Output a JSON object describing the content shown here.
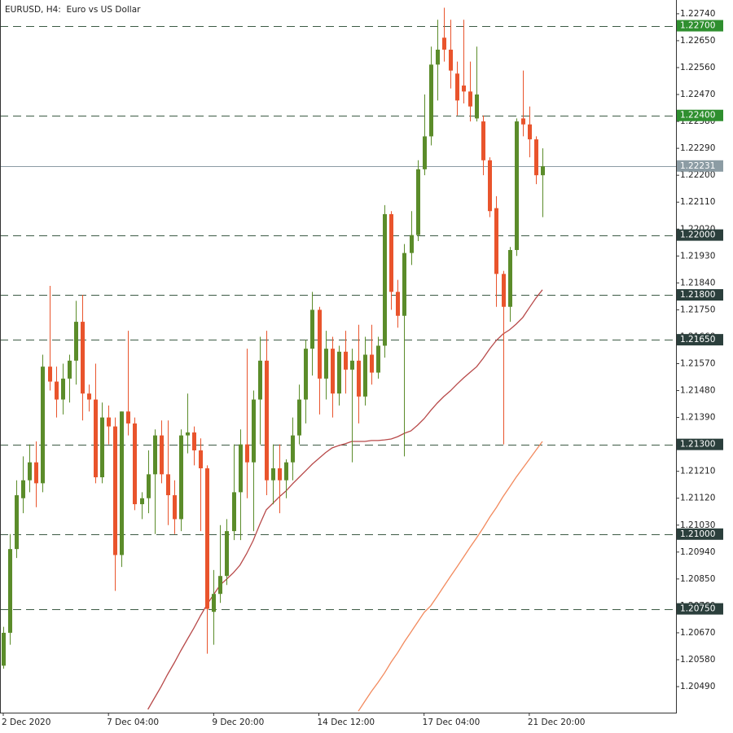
{
  "chart_data": {
    "type": "candlestick",
    "title": "EURUSD, H4:  Euro vs US Dollar",
    "categories": [
      "2 Dec 2020",
      null,
      null,
      null,
      null,
      null,
      null,
      null,
      null,
      null,
      null,
      null,
      null,
      null,
      null,
      null,
      "7 Dec 04:00",
      null,
      null,
      null,
      null,
      null,
      null,
      null,
      null,
      null,
      null,
      null,
      null,
      null,
      null,
      null,
      "9 Dec 20:00",
      null,
      null,
      null,
      null,
      null,
      null,
      null,
      null,
      null,
      null,
      null,
      null,
      null,
      null,
      null,
      "14 Dec 12:00",
      null,
      null,
      null,
      null,
      null,
      null,
      null,
      null,
      null,
      null,
      null,
      null,
      null,
      null,
      null,
      "17 Dec 04:00",
      null,
      null,
      null,
      null,
      null,
      null,
      null,
      null,
      null,
      null,
      null,
      null,
      null,
      null,
      null,
      "21 Dec 20:00",
      null,
      null
    ],
    "open": [
      1.2056,
      1.2067,
      1.2095,
      1.2112,
      1.2118,
      1.2124,
      1.2117,
      1.2156,
      1.2151,
      1.2145,
      1.2152,
      1.2158,
      1.2171,
      1.2147,
      1.2145,
      1.2119,
      1.2139,
      1.2136,
      1.2093,
      1.2141,
      1.2137,
      1.211,
      1.2112,
      1.212,
      1.2133,
      1.212,
      1.2113,
      1.2105,
      1.2133,
      1.2134,
      1.2128,
      1.2122,
      1.2074,
      1.208,
      1.2086,
      1.2101,
      1.2114,
      1.213,
      1.2124,
      1.2145,
      1.2158,
      1.2118,
      1.2122,
      1.2118,
      1.2124,
      1.2133,
      1.2145,
      1.2162,
      1.2175,
      1.2152,
      1.2162,
      1.2147,
      1.2161,
      1.2155,
      1.2158,
      1.2146,
      1.216,
      1.2154,
      1.2163,
      1.2207,
      1.2181,
      1.2173,
      1.2194,
      1.22,
      1.2222,
      1.2233,
      1.2257,
      1.2266,
      1.2262,
      1.2254,
      1.225,
      1.2248,
      1.2239,
      1.2238,
      1.2225,
      1.2209,
      1.2187,
      1.2176,
      1.2195,
      1.2239,
      1.2237,
      1.2232,
      1.222
    ],
    "high": [
      1.2069,
      1.21,
      1.2118,
      1.2126,
      1.213,
      1.2131,
      1.216,
      1.2183,
      1.2156,
      1.2157,
      1.216,
      1.2178,
      1.218,
      1.215,
      1.2157,
      1.2144,
      1.2143,
      1.2139,
      1.2141,
      1.2168,
      1.2139,
      1.2114,
      1.2128,
      1.2135,
      1.2138,
      1.2138,
      1.2118,
      1.2135,
      1.2147,
      1.2136,
      1.2132,
      1.2123,
      1.2088,
      1.2103,
      1.2105,
      1.213,
      1.2135,
      1.2162,
      1.2148,
      1.2166,
      1.2168,
      1.213,
      1.213,
      1.2125,
      1.2139,
      1.215,
      1.2165,
      1.2181,
      1.2176,
      1.2168,
      1.2166,
      1.2163,
      1.2168,
      1.2162,
      1.217,
      1.2166,
      1.217,
      1.2166,
      1.221,
      1.2208,
      1.2185,
      1.2197,
      1.2208,
      1.2225,
      1.2247,
      1.2263,
      1.2272,
      1.2276,
      1.2272,
      1.2258,
      1.2272,
      1.2258,
      1.2263,
      1.224,
      1.2226,
      1.2213,
      1.2188,
      1.2196,
      1.2239,
      1.2255,
      1.2243,
      1.2233,
      1.2229
    ],
    "low": [
      1.2055,
      1.2063,
      1.2092,
      1.2107,
      1.2114,
      1.2109,
      1.2114,
      1.2148,
      1.2139,
      1.214,
      1.2144,
      1.215,
      1.2138,
      1.2141,
      1.2117,
      1.2117,
      1.213,
      1.2081,
      1.2089,
      1.2133,
      1.2108,
      1.2105,
      1.2107,
      1.21,
      1.2117,
      1.2103,
      1.21,
      1.2101,
      1.2127,
      1.2123,
      1.2101,
      1.206,
      1.2063,
      1.2077,
      1.2083,
      1.2098,
      1.2098,
      1.2112,
      1.2101,
      1.213,
      1.2113,
      1.211,
      1.2107,
      1.2112,
      1.2118,
      1.213,
      1.2137,
      1.2153,
      1.214,
      1.2145,
      1.2139,
      1.2143,
      1.2147,
      1.2124,
      1.2137,
      1.2143,
      1.215,
      1.2152,
      1.2159,
      1.2175,
      1.2169,
      1.2126,
      1.219,
      1.2198,
      1.222,
      1.223,
      1.2245,
      1.2258,
      1.2249,
      1.224,
      1.2244,
      1.2238,
      1.2238,
      1.222,
      1.2206,
      1.2176,
      1.213,
      1.2171,
      1.2193,
      1.2233,
      1.2226,
      1.2217,
      1.2206
    ],
    "close": [
      1.2067,
      1.2095,
      1.2113,
      1.2118,
      1.2124,
      1.2117,
      1.2156,
      1.2151,
      1.2145,
      1.2152,
      1.2158,
      1.2171,
      1.2147,
      1.2145,
      1.2119,
      1.2139,
      1.2136,
      1.2093,
      1.2141,
      1.2137,
      1.211,
      1.2112,
      1.212,
      1.2133,
      1.212,
      1.2113,
      1.2105,
      1.2133,
      1.2134,
      1.2128,
      1.2122,
      1.2075,
      1.208,
      1.2086,
      1.2101,
      1.2114,
      1.213,
      1.2124,
      1.2145,
      1.2158,
      1.2118,
      1.2122,
      1.2118,
      1.2124,
      1.2133,
      1.2145,
      1.2162,
      1.2175,
      1.2152,
      1.2162,
      1.2147,
      1.2161,
      1.2155,
      1.2158,
      1.2146,
      1.216,
      1.2154,
      1.2163,
      1.2207,
      1.2181,
      1.2173,
      1.2194,
      1.22,
      1.2222,
      1.2233,
      1.2257,
      1.2262,
      1.2262,
      1.2255,
      1.2245,
      1.2248,
      1.2243,
      1.2247,
      1.2225,
      1.2208,
      1.2187,
      1.2176,
      1.2195,
      1.2238,
      1.2237,
      1.2232,
      1.222,
      1.2223
    ],
    "up_color": "#5b8c2a",
    "down_color": "#e9542c",
    "overlays": [
      {
        "color": "#b84a4a",
        "values": [
          null,
          null,
          null,
          null,
          null,
          null,
          null,
          null,
          null,
          null,
          null,
          null,
          null,
          null,
          null,
          null,
          null,
          null,
          null,
          null,
          null,
          null,
          1.20414,
          1.20452,
          1.2049,
          1.20531,
          1.20569,
          1.2061,
          1.20648,
          1.20686,
          1.20727,
          1.20765,
          1.20798,
          1.2083,
          1.2085,
          1.20871,
          1.20896,
          1.20934,
          1.20978,
          1.21032,
          1.21081,
          1.21103,
          1.21125,
          1.21144,
          1.21168,
          1.2119,
          1.21212,
          1.21234,
          1.21253,
          1.21272,
          1.21288,
          1.21296,
          1.21302,
          1.2131,
          1.2131,
          1.2131,
          1.21313,
          1.21313,
          1.21315,
          1.21318,
          1.21326,
          1.21337,
          1.21345,
          1.21364,
          1.21386,
          1.21413,
          1.21438,
          1.2146,
          1.21479,
          1.21501,
          1.21522,
          1.21541,
          1.2156,
          1.21588,
          1.2162,
          1.21648,
          1.21669,
          1.21683,
          1.21702,
          1.21724,
          1.21757,
          1.21789,
          1.21817
        ]
      },
      {
        "color": "#f28a5e",
        "values": [
          null,
          null,
          null,
          null,
          null,
          null,
          null,
          null,
          null,
          null,
          null,
          null,
          null,
          null,
          null,
          null,
          null,
          null,
          null,
          null,
          null,
          null,
          null,
          null,
          null,
          null,
          null,
          null,
          null,
          null,
          null,
          null,
          null,
          null,
          null,
          null,
          null,
          null,
          null,
          null,
          null,
          null,
          null,
          null,
          null,
          null,
          null,
          null,
          null,
          null,
          null,
          null,
          null,
          null,
          1.20408,
          1.20441,
          1.20474,
          1.20504,
          1.20536,
          1.20572,
          1.20604,
          1.2064,
          1.20672,
          1.20705,
          1.20738,
          1.2076,
          1.20792,
          1.20825,
          1.20858,
          1.2089,
          1.20923,
          1.20956,
          1.20988,
          1.21021,
          1.21057,
          1.21089,
          1.21125,
          1.21157,
          1.2119,
          1.2122,
          1.2125,
          1.2128,
          1.2131
        ]
      }
    ],
    "ylim": [
      1.20403,
      1.22786
    ],
    "yticks": [
      {
        "value": 1.2274,
        "label": "1.22740"
      },
      {
        "value": 1.2265,
        "label": "1.22650"
      },
      {
        "value": 1.2256,
        "label": "1.22560"
      },
      {
        "value": 1.2247,
        "label": "1.22470"
      },
      {
        "value": 1.2238,
        "label": "1.22380"
      },
      {
        "value": 1.2229,
        "label": "1.22290"
      },
      {
        "value": 1.222,
        "label": "1.22200"
      },
      {
        "value": 1.2211,
        "label": "1.22110"
      },
      {
        "value": 1.2202,
        "label": "1.22020"
      },
      {
        "value": 1.2193,
        "label": "1.21930"
      },
      {
        "value": 1.2184,
        "label": "1.21840"
      },
      {
        "value": 1.2175,
        "label": "1.21750"
      },
      {
        "value": 1.2166,
        "label": "1.21660"
      },
      {
        "value": 1.2157,
        "label": "1.21570"
      },
      {
        "value": 1.2148,
        "label": "1.21480"
      },
      {
        "value": 1.2139,
        "label": "1.21390"
      },
      {
        "value": 1.213,
        "label": "1.21300"
      },
      {
        "value": 1.2121,
        "label": "1.21210"
      },
      {
        "value": 1.2112,
        "label": "1.21120"
      },
      {
        "value": 1.2103,
        "label": "1.21030"
      },
      {
        "value": 1.2094,
        "label": "1.20940"
      },
      {
        "value": 1.2085,
        "label": "1.20850"
      },
      {
        "value": 1.2076,
        "label": "1.20760"
      },
      {
        "value": 1.2067,
        "label": "1.20670"
      },
      {
        "value": 1.2058,
        "label": "1.20580"
      },
      {
        "value": 1.2049,
        "label": "1.20490"
      }
    ],
    "levels": [
      {
        "value": 1.227,
        "label": "1.22700",
        "color": "#2f8f2f"
      },
      {
        "value": 1.224,
        "label": "1.22400",
        "color": "#2f8f2f"
      },
      {
        "value": 1.22,
        "label": "1.22000",
        "color": "#2b3f3c"
      },
      {
        "value": 1.218,
        "label": "1.21800",
        "color": "#2b3f3c"
      },
      {
        "value": 1.2165,
        "label": "1.21650",
        "color": "#2b3f3c"
      },
      {
        "value": 1.213,
        "label": "1.21300",
        "color": "#2b3f3c"
      },
      {
        "value": 1.21,
        "label": "1.21000",
        "color": "#2b3f3c"
      },
      {
        "value": 1.2075,
        "label": "1.20750",
        "color": "#2b3f3c"
      }
    ],
    "current_price": {
      "value": 1.22231,
      "label": "1.22231",
      "color": "#8c9ca4"
    }
  }
}
